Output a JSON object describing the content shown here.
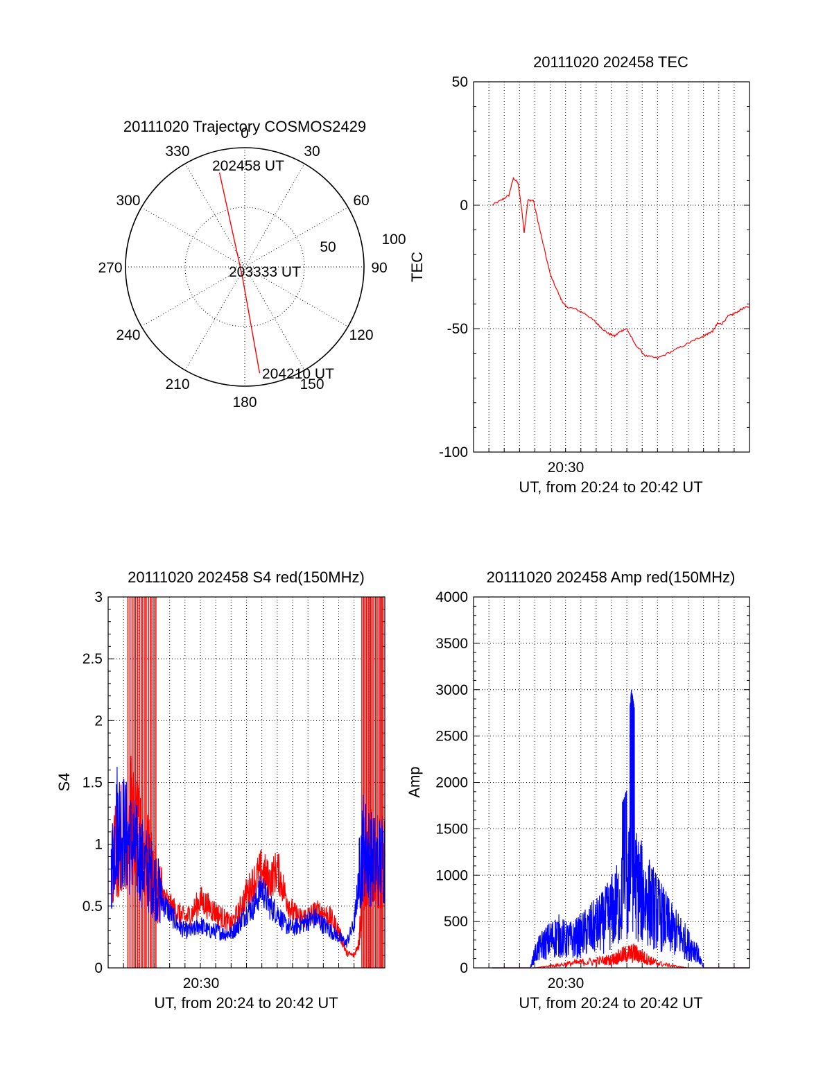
{
  "chart_data": [
    {
      "type": "polar",
      "title": "20111020 Trajectory COSMOS2429",
      "angle_labels": [
        "0",
        "30",
        "60",
        "90",
        "120",
        "150",
        "180",
        "210",
        "240",
        "270",
        "300",
        "330"
      ],
      "radial_labels": [
        "50",
        "100"
      ],
      "trajectory_points": [
        {
          "label": "202458 UT",
          "azimuth": 345,
          "radius": 82
        },
        {
          "label": "203333 UT",
          "azimuth": 195,
          "radius": 8
        },
        {
          "label": "204210 UT",
          "azimuth": 172,
          "radius": 90
        }
      ],
      "line_color": "#ff0000"
    },
    {
      "type": "line",
      "title": "20111020 202458 TEC",
      "ylabel": "TEC",
      "xlabel": "UT, from 20:24 to 20:42 UT",
      "ylim": [
        -100,
        50
      ],
      "yticks": [
        "50",
        "0",
        "-50",
        "-100"
      ],
      "xtick_label": "20:30",
      "series": [
        {
          "color": "#ff0000",
          "x": [
            25.2,
            25.8,
            26.3,
            26.6,
            26.9,
            27.15,
            27.3,
            27.55,
            27.9,
            28.4,
            29.0,
            29.7,
            30.0,
            30.6,
            31.3,
            31.9,
            32.4,
            32.8,
            33.2,
            33.6,
            34.0,
            34.5,
            35.2,
            36.0,
            37.0,
            38.0,
            38.6,
            39.0,
            39.3,
            39.6,
            39.9,
            40.2,
            40.6,
            41.0,
            41.5,
            42.0
          ],
          "y": [
            0,
            2,
            4,
            11,
            9,
            -2,
            -11,
            2,
            2,
            -12,
            -28,
            -38,
            -41,
            -42,
            -44,
            -47,
            -50,
            -52,
            -53,
            -51,
            -50,
            -56,
            -61,
            -62,
            -59,
            -56,
            -54,
            -53,
            -52,
            -51,
            -48,
            -48,
            -45,
            -44,
            -42,
            -41
          ]
        }
      ]
    },
    {
      "type": "line",
      "title": "20111020 202458 S4 red(150MHz)",
      "ylabel": "S4",
      "xlabel": "UT, from 20:24 to 20:42 UT",
      "ylim": [
        0,
        3
      ],
      "yticks": [
        "3",
        "2.5",
        "2",
        "1.5",
        "1",
        "0.5",
        "0"
      ],
      "xtick_label": "20:30",
      "series": [
        {
          "color": "#0000ff",
          "x": [
            24.2,
            24.6,
            25.0,
            25.5,
            26.0,
            26.5,
            27.0,
            27.5,
            28.0,
            28.5,
            29.0,
            29.5,
            30.0,
            30.5,
            31.0,
            31.5,
            32.0,
            32.5,
            33.0,
            33.5,
            34.0,
            34.5,
            35.0,
            35.5,
            36.0,
            36.5,
            37.0,
            37.5,
            38.0,
            38.5,
            39.0,
            39.5,
            40.0,
            40.3,
            40.6,
            41.0,
            41.5,
            42.0
          ],
          "y": [
            0.8,
            1.2,
            1.1,
            1.0,
            0.9,
            0.8,
            0.7,
            0.55,
            0.45,
            0.35,
            0.3,
            0.3,
            0.35,
            0.3,
            0.3,
            0.28,
            0.28,
            0.35,
            0.45,
            0.5,
            0.65,
            0.5,
            0.45,
            0.35,
            0.32,
            0.35,
            0.38,
            0.4,
            0.35,
            0.3,
            0.25,
            0.2,
            0.35,
            0.7,
            1.0,
            0.9,
            0.85,
            0.9
          ]
        },
        {
          "color": "#ff0000",
          "x": [
            24.2,
            25.0,
            25.5,
            26.0,
            26.5,
            27.0,
            27.5,
            28.0,
            28.5,
            29.0,
            29.5,
            30.0,
            30.5,
            31.0,
            31.5,
            32.0,
            32.5,
            33.0,
            33.5,
            34.0,
            34.5,
            35.0,
            35.5,
            36.0,
            36.5,
            37.0,
            37.5,
            38.0,
            38.5,
            39.0,
            39.5,
            40.0,
            40.3,
            40.6,
            41.0,
            41.5,
            42.0
          ],
          "y": [
            0.9,
            1.1,
            1.2,
            1.0,
            0.9,
            0.7,
            0.6,
            0.5,
            0.45,
            0.4,
            0.45,
            0.55,
            0.5,
            0.45,
            0.4,
            0.35,
            0.45,
            0.6,
            0.7,
            0.8,
            0.7,
            0.8,
            0.6,
            0.45,
            0.4,
            0.42,
            0.45,
            0.45,
            0.4,
            0.3,
            0.12,
            0.1,
            0.2,
            0.7,
            0.9,
            0.85,
            0.9
          ]
        }
      ]
    },
    {
      "type": "line",
      "title": "20111020 202458 Amp red(150MHz)",
      "ylabel": "Amp",
      "xlabel": "UT, from 20:24 to 20:42 UT",
      "ylim": [
        0,
        4000
      ],
      "yticks": [
        "4000",
        "3500",
        "3000",
        "2500",
        "2000",
        "1500",
        "1000",
        "500",
        "0"
      ],
      "xtick_label": "20:30",
      "series": [
        {
          "color": "#0000ff",
          "x": [
            25.2,
            27.0,
            27.7,
            28.0,
            28.5,
            29.0,
            29.5,
            30.0,
            30.5,
            31.0,
            31.5,
            32.0,
            32.5,
            33.0,
            33.5,
            34.0,
            34.3,
            34.6,
            35.0,
            35.5,
            36.0,
            36.5,
            37.0,
            37.5,
            38.0,
            38.5,
            39.0,
            42.0
          ],
          "y": [
            0,
            0,
            0,
            150,
            250,
            300,
            350,
            300,
            300,
            350,
            400,
            450,
            500,
            600,
            700,
            800,
            1000,
            900,
            800,
            700,
            600,
            500,
            400,
            350,
            250,
            200,
            0,
            0
          ]
        },
        {
          "color": "#ff0000",
          "x": [
            25.2,
            28.0,
            29.0,
            30.0,
            31.0,
            32.0,
            33.0,
            33.5,
            34.0,
            34.5,
            35.0,
            35.5,
            36.0,
            37.0,
            38.0,
            42.0
          ],
          "y": [
            0,
            0,
            20,
            40,
            60,
            70,
            90,
            120,
            150,
            160,
            120,
            80,
            50,
            20,
            0,
            0
          ]
        }
      ]
    }
  ]
}
